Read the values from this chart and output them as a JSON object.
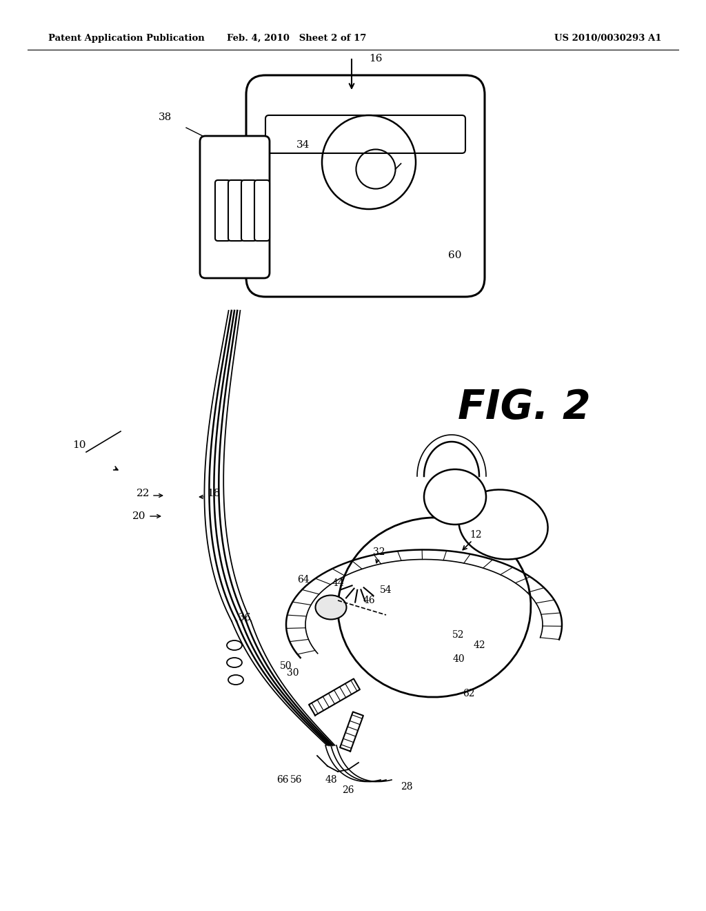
{
  "header_left": "Patent Application Publication",
  "header_mid": "Feb. 4, 2010   Sheet 2 of 17",
  "header_right": "US 2010/0030293 A1",
  "fig_label": "FIG. 2",
  "background_color": "#ffffff",
  "line_color": "#000000"
}
